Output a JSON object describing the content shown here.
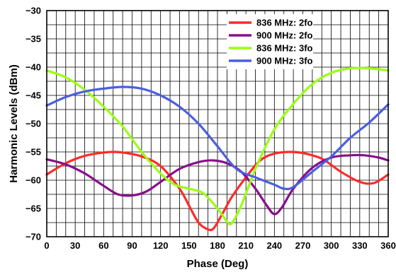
{
  "chart_data": {
    "type": "line",
    "title": "",
    "xlabel": "Phase (Deg)",
    "ylabel": "Harmonic Levels (dBm)",
    "xlim": [
      0,
      360
    ],
    "ylim": [
      -70,
      -30
    ],
    "xticks": [
      0,
      30,
      60,
      90,
      120,
      150,
      180,
      210,
      240,
      270,
      300,
      330,
      360
    ],
    "yticks": [
      -30,
      -35,
      -40,
      -45,
      -50,
      -55,
      -60,
      -65,
      -70
    ],
    "x_tick_labels": [
      "0",
      "30",
      "60",
      "90",
      "120",
      "150",
      "180",
      "210",
      "240",
      "270",
      "300",
      "330",
      "360"
    ],
    "y_tick_labels": [
      "−30",
      "−35",
      "−40",
      "−45",
      "−50",
      "−55",
      "−60",
      "−65",
      "−70"
    ],
    "grid": true,
    "legend_position": "top-right",
    "series": [
      {
        "name": "836 MHz: 2fo",
        "color": "#ff2a2a",
        "x": [
          0,
          20,
          40,
          60,
          70,
          80,
          100,
          120,
          140,
          150,
          160,
          170,
          176,
          185,
          195,
          210,
          225,
          240,
          255,
          270,
          290,
          310,
          330,
          345,
          360
        ],
        "y": [
          -59,
          -57,
          -55.7,
          -55.1,
          -55,
          -55.1,
          -55.8,
          -57.5,
          -61.5,
          -64.5,
          -67.5,
          -68.7,
          -68.5,
          -66,
          -63,
          -59.5,
          -56.5,
          -55.3,
          -55,
          -55.2,
          -56.2,
          -58.5,
          -60.3,
          -60.5,
          -59
        ]
      },
      {
        "name": "900 MHz: 2fo",
        "color": "#880f8c",
        "x": [
          0,
          20,
          40,
          60,
          75,
          90,
          105,
          120,
          140,
          160,
          175,
          190,
          205,
          220,
          232,
          240,
          248,
          260,
          280,
          300,
          320,
          335,
          350,
          360
        ],
        "y": [
          -56.3,
          -57.2,
          -58.8,
          -61,
          -62.5,
          -62.7,
          -62,
          -60.3,
          -58,
          -56.8,
          -56.5,
          -57,
          -58.5,
          -61.5,
          -64.5,
          -66,
          -64.8,
          -61.5,
          -57.8,
          -56,
          -55.6,
          -55.6,
          -56,
          -56.5
        ]
      },
      {
        "name": "836 MHz: 3fo",
        "color": "#99ff11",
        "x": [
          0,
          20,
          40,
          60,
          80,
          100,
          120,
          135,
          150,
          165,
          180,
          190,
          195,
          205,
          220,
          240,
          260,
          280,
          300,
          320,
          340,
          360
        ],
        "y": [
          -40.6,
          -41.8,
          -44,
          -47,
          -50.5,
          -55,
          -58.8,
          -60.8,
          -61.5,
          -62.3,
          -65,
          -67.3,
          -67.6,
          -64.5,
          -58,
          -51,
          -46.5,
          -43,
          -41,
          -40.2,
          -40.2,
          -40.6
        ]
      },
      {
        "name": "900 MHz: 3fo",
        "color": "#4a5fe0",
        "x": [
          0,
          20,
          40,
          60,
          80,
          100,
          120,
          140,
          160,
          180,
          200,
          220,
          240,
          250,
          260,
          280,
          300,
          320,
          340,
          360
        ],
        "y": [
          -46.8,
          -45.3,
          -44.3,
          -43.8,
          -43.5,
          -43.8,
          -45,
          -47,
          -50,
          -54,
          -58,
          -59.5,
          -60.8,
          -61.5,
          -61.2,
          -58.5,
          -55.8,
          -52.5,
          -49.8,
          -46.6
        ]
      }
    ]
  }
}
